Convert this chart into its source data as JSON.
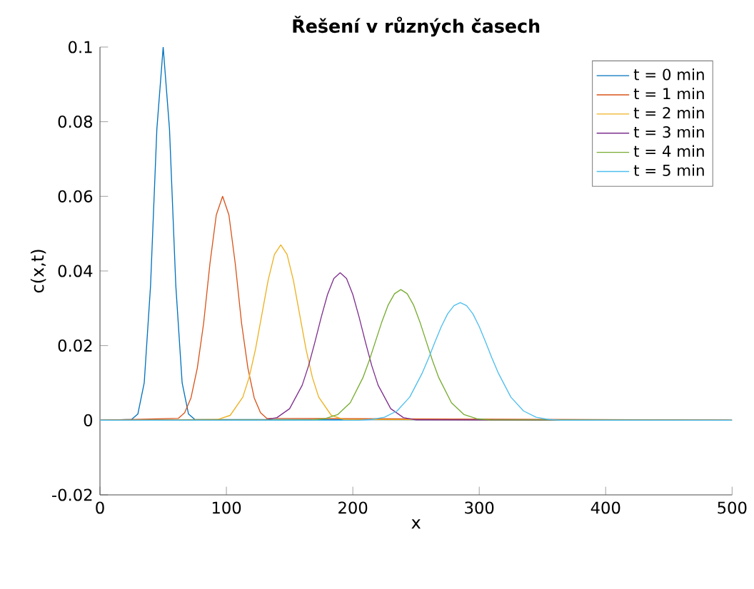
{
  "chart_data": {
    "type": "line",
    "title": "Řešení v různých časech",
    "xlabel": "x",
    "ylabel": "c(x,t)",
    "xlim": [
      0,
      500
    ],
    "ylim": [
      -0.02,
      0.1
    ],
    "xticks": [
      0,
      100,
      200,
      300,
      400,
      500
    ],
    "yticks": [
      -0.02,
      0,
      0.02,
      0.04,
      0.06,
      0.08,
      0.1
    ],
    "grid": false,
    "legend": "top right",
    "marker": "none",
    "line_style": "solid",
    "series": [
      {
        "name": "t = 0 min",
        "color": "#0072bd",
        "x": [
          0,
          25,
          30,
          35,
          40,
          45,
          50,
          55,
          60,
          65,
          70,
          75,
          500
        ],
        "values": [
          0,
          0.0002,
          0.0017,
          0.01,
          0.036,
          0.078,
          0.1,
          0.078,
          0.036,
          0.01,
          0.0017,
          0.0002,
          0
        ]
      },
      {
        "name": "t = 1 min",
        "color": "#d95319",
        "x": [
          0,
          62,
          67,
          72,
          77,
          82,
          87,
          92,
          97,
          102,
          107,
          112,
          117,
          122,
          127,
          132,
          500
        ],
        "values": [
          0,
          0.0005,
          0.002,
          0.006,
          0.014,
          0.026,
          0.042,
          0.055,
          0.06,
          0.055,
          0.042,
          0.026,
          0.014,
          0.006,
          0.002,
          0.0005,
          0
        ]
      },
      {
        "name": "t = 2 min",
        "color": "#edb120",
        "x": [
          0,
          93,
          103,
          113,
          118,
          123,
          128,
          133,
          138,
          143,
          148,
          153,
          158,
          163,
          168,
          173,
          183,
          193,
          500
        ],
        "values": [
          0,
          0.0002,
          0.0013,
          0.0062,
          0.0115,
          0.019,
          0.0282,
          0.0375,
          0.0444,
          0.047,
          0.0444,
          0.0375,
          0.0282,
          0.019,
          0.0115,
          0.0062,
          0.0013,
          0.0002,
          0
        ]
      },
      {
        "name": "t = 3 min",
        "color": "#7e2f8e",
        "x": [
          0,
          130,
          140,
          150,
          160,
          165,
          170,
          175,
          180,
          185,
          190,
          195,
          200,
          205,
          210,
          215,
          220,
          230,
          240,
          250,
          500
        ],
        "values": [
          0,
          0.0001,
          0.0007,
          0.0031,
          0.0094,
          0.0146,
          0.0209,
          0.0276,
          0.0337,
          0.038,
          0.0395,
          0.038,
          0.0337,
          0.0276,
          0.0209,
          0.0146,
          0.0094,
          0.0031,
          0.0007,
          0.0001,
          0
        ]
      },
      {
        "name": "t = 4 min",
        "color": "#77ac30",
        "x": [
          0,
          168,
          178,
          188,
          198,
          208,
          213,
          218,
          223,
          228,
          233,
          238,
          243,
          248,
          253,
          258,
          263,
          268,
          278,
          288,
          298,
          308,
          500
        ],
        "values": [
          0,
          0.0001,
          0.0004,
          0.0015,
          0.0047,
          0.0114,
          0.016,
          0.0212,
          0.0264,
          0.0309,
          0.0339,
          0.035,
          0.0339,
          0.0309,
          0.0264,
          0.0212,
          0.016,
          0.0114,
          0.0047,
          0.0015,
          0.0004,
          0.0001,
          0
        ]
      },
      {
        "name": "t = 5 min",
        "color": "#4dbeee",
        "x": [
          0,
          205,
          215,
          225,
          235,
          245,
          255,
          260,
          265,
          270,
          275,
          280,
          285,
          290,
          295,
          300,
          305,
          310,
          315,
          325,
          335,
          345,
          355,
          365,
          500
        ],
        "values": [
          0,
          0,
          0.0002,
          0.0008,
          0.0025,
          0.0062,
          0.0127,
          0.0167,
          0.021,
          0.0251,
          0.0285,
          0.0307,
          0.0315,
          0.0307,
          0.0285,
          0.0251,
          0.021,
          0.0167,
          0.0127,
          0.0062,
          0.0025,
          0.0008,
          0.0002,
          0,
          0
        ]
      }
    ]
  }
}
